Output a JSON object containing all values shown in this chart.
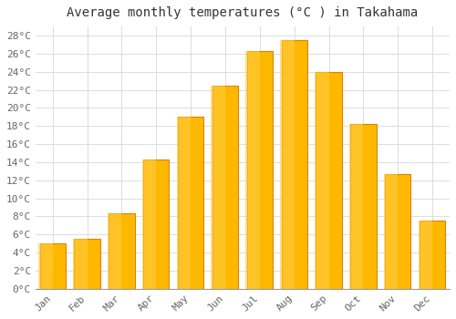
{
  "title": "Average monthly temperatures (°C ) in Takahama",
  "months": [
    "Jan",
    "Feb",
    "Mar",
    "Apr",
    "May",
    "Jun",
    "Jul",
    "Aug",
    "Sep",
    "Oct",
    "Nov",
    "Dec"
  ],
  "temperatures": [
    5.0,
    5.5,
    8.3,
    14.3,
    19.0,
    22.5,
    26.3,
    27.5,
    24.0,
    18.2,
    12.7,
    7.5
  ],
  "bar_face_color": "#FFB800",
  "bar_edge_color": "#E08000",
  "background_color": "#FFFFFF",
  "plot_bg_color": "#FFFFFF",
  "grid_color": "#DDDDDD",
  "ylim": [
    0,
    29
  ],
  "ytick_step": 2,
  "title_fontsize": 10,
  "tick_fontsize": 8,
  "font_family": "monospace",
  "title_color": "#333333",
  "tick_color": "#666666"
}
